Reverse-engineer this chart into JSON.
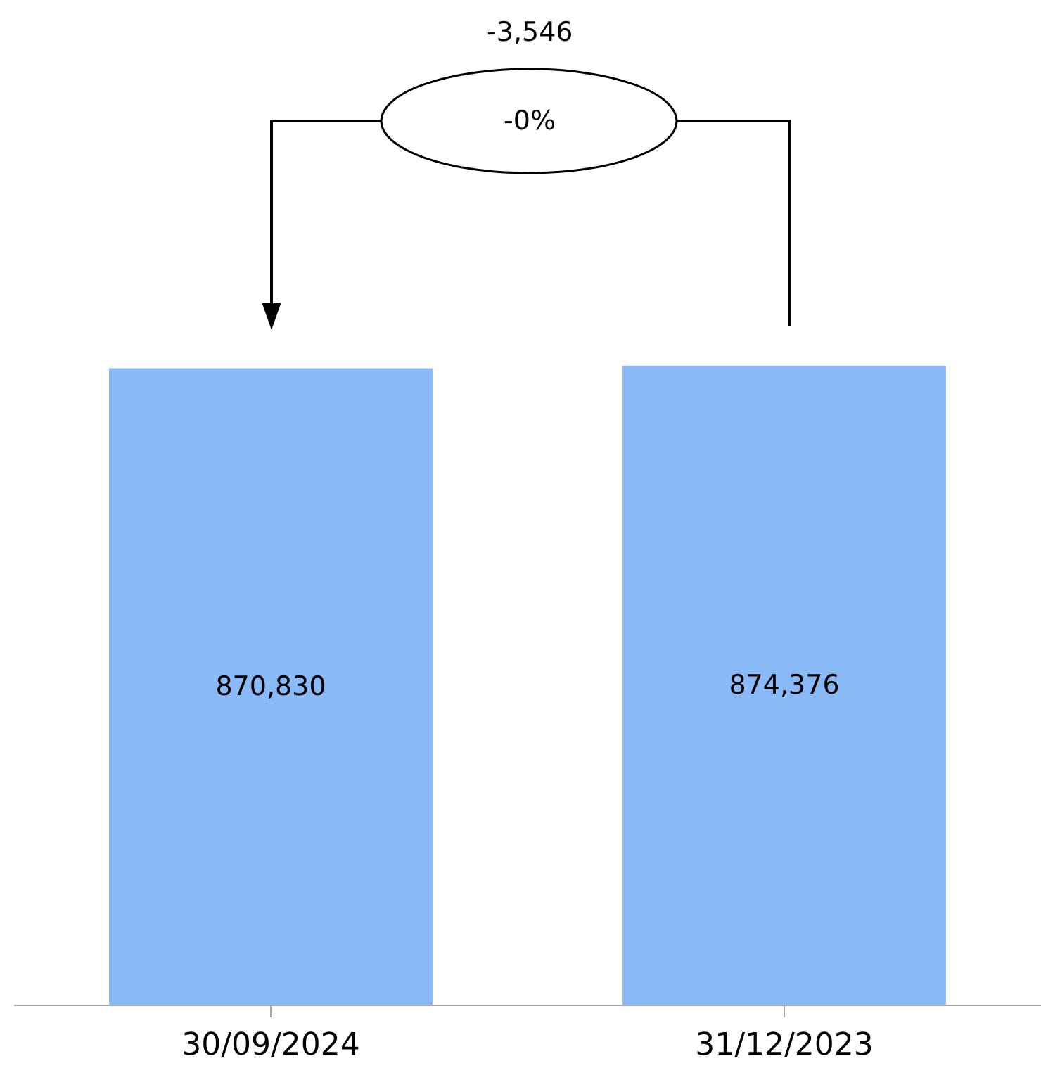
{
  "chart_data": {
    "type": "bar",
    "categories": [
      "30/09/2024",
      "31/12/2023"
    ],
    "values": [
      870830,
      874376
    ],
    "color": "#8ab9f7",
    "value_labels": [
      "870,830",
      "874,376"
    ],
    "tick_labels": "x",
    "annotations": [
      "-3,546",
      "-0%"
    ]
  }
}
